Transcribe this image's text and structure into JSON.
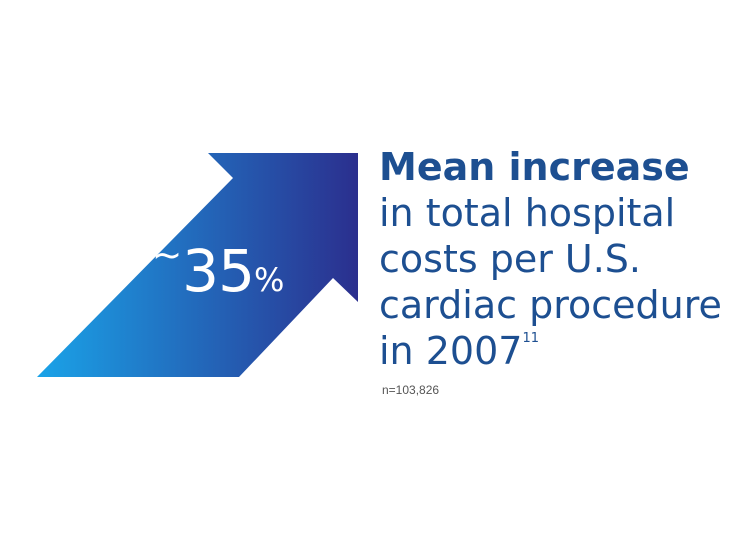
{
  "graphic": {
    "arrow_gradient_start": "#1aa3e8",
    "arrow_gradient_end": "#2b2f8e",
    "text_color": "#1d4f91"
  },
  "stat": {
    "tilde": "~",
    "value": "35",
    "unit": "%"
  },
  "caption": {
    "heading": "Mean increase",
    "lines": [
      "in total hospital",
      "costs per U.S.",
      "cardiac procedure",
      "in 2007"
    ],
    "citation": "11"
  },
  "sample_size": "n=103,826"
}
